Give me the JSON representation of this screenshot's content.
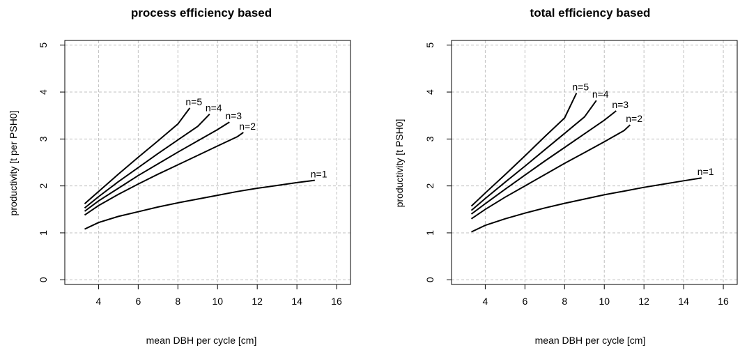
{
  "chart_data": [
    {
      "type": "line",
      "title": "process efficiency based",
      "xlabel": "mean DBH per cycle [cm]",
      "ylabel": "productivity [t per PSH0]",
      "xlim": [
        2.3,
        16.7
      ],
      "ylim": [
        -0.1,
        5.1
      ],
      "xticks": [
        4,
        6,
        8,
        10,
        12,
        14,
        16
      ],
      "yticks": [
        0,
        1,
        2,
        3,
        4,
        5
      ],
      "grid": true,
      "series": [
        {
          "name": "n=1",
          "x": [
            3.3,
            4,
            5,
            6,
            7,
            8,
            9,
            10,
            11,
            12,
            13,
            14,
            14.9
          ],
          "y": [
            1.08,
            1.22,
            1.35,
            1.45,
            1.55,
            1.64,
            1.72,
            1.8,
            1.88,
            1.95,
            2.01,
            2.07,
            2.12
          ]
        },
        {
          "name": "n=2",
          "x": [
            3.3,
            4,
            5,
            6,
            7,
            8,
            9,
            10,
            11,
            11.3
          ],
          "y": [
            1.38,
            1.58,
            1.82,
            2.04,
            2.25,
            2.45,
            2.65,
            2.85,
            3.05,
            3.14
          ]
        },
        {
          "name": "n=3",
          "x": [
            3.3,
            4,
            5,
            6,
            7,
            8,
            9,
            10,
            10.6
          ],
          "y": [
            1.46,
            1.68,
            1.95,
            2.22,
            2.47,
            2.72,
            2.96,
            3.2,
            3.36
          ]
        },
        {
          "name": "n=4",
          "x": [
            3.3,
            4,
            5,
            6,
            7,
            8,
            9,
            9.6
          ],
          "y": [
            1.53,
            1.77,
            2.09,
            2.39,
            2.69,
            2.98,
            3.27,
            3.53
          ]
        },
        {
          "name": "n=5",
          "x": [
            3.3,
            4,
            5,
            6,
            7,
            8,
            8.6
          ],
          "y": [
            1.62,
            1.88,
            2.25,
            2.61,
            2.96,
            3.32,
            3.66
          ]
        }
      ]
    },
    {
      "type": "line",
      "title": "total efficiency based",
      "xlabel": "mean DBH per cycle [cm]",
      "ylabel": "productivity [t PSH0]",
      "xlim": [
        2.3,
        16.7
      ],
      "ylim": [
        -0.1,
        5.1
      ],
      "xticks": [
        4,
        6,
        8,
        10,
        12,
        14,
        16
      ],
      "yticks": [
        0,
        1,
        2,
        3,
        4,
        5
      ],
      "grid": true,
      "series": [
        {
          "name": "n=1",
          "x": [
            3.3,
            4,
            5,
            6,
            7,
            8,
            9,
            10,
            11,
            12,
            13,
            14,
            14.9
          ],
          "y": [
            1.02,
            1.16,
            1.3,
            1.42,
            1.53,
            1.63,
            1.72,
            1.81,
            1.89,
            1.97,
            2.04,
            2.11,
            2.17
          ]
        },
        {
          "name": "n=2",
          "x": [
            3.3,
            4,
            5,
            6,
            7,
            8,
            9,
            10,
            11,
            11.3
          ],
          "y": [
            1.3,
            1.5,
            1.76,
            2.0,
            2.24,
            2.48,
            2.71,
            2.94,
            3.18,
            3.3
          ]
        },
        {
          "name": "n=3",
          "x": [
            3.3,
            4,
            5,
            6,
            7,
            8,
            9,
            10,
            10.6
          ],
          "y": [
            1.4,
            1.62,
            1.93,
            2.23,
            2.53,
            2.82,
            3.11,
            3.4,
            3.6
          ]
        },
        {
          "name": "n=4",
          "x": [
            3.3,
            4,
            5,
            6,
            7,
            8,
            9,
            9.6
          ],
          "y": [
            1.48,
            1.73,
            2.08,
            2.42,
            2.77,
            3.12,
            3.47,
            3.82
          ]
        },
        {
          "name": "n=5",
          "x": [
            3.3,
            4,
            5,
            6,
            7,
            8,
            8.6
          ],
          "y": [
            1.57,
            1.85,
            2.24,
            2.64,
            3.05,
            3.45,
            3.98
          ]
        }
      ]
    }
  ]
}
